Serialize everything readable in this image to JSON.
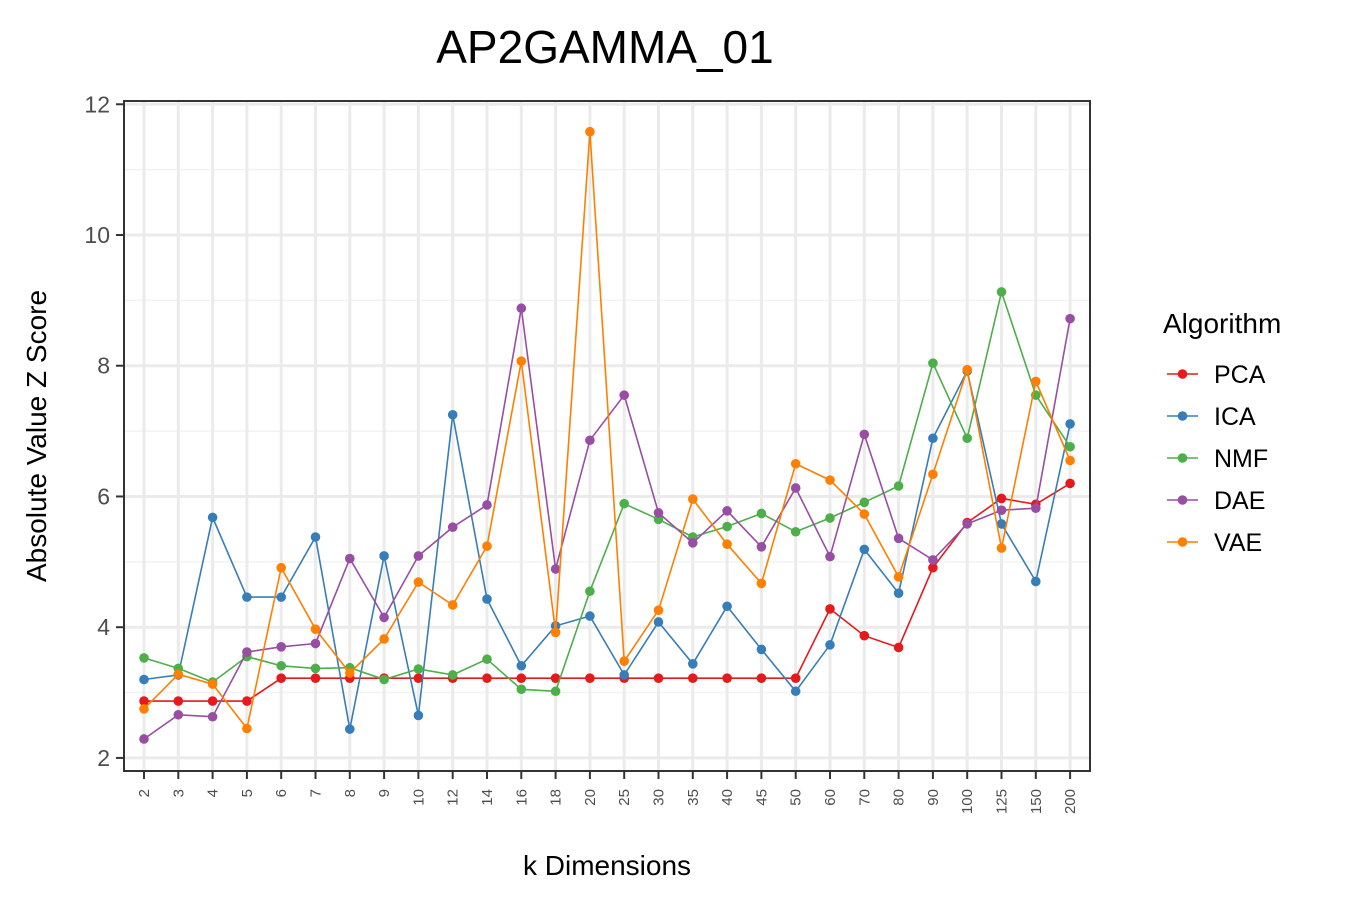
{
  "chart_data": {
    "type": "line",
    "title": "AP2GAMMA_01",
    "xlabel": "k Dimensions",
    "ylabel": "Absolute Value Z Score",
    "categories": [
      "2",
      "3",
      "4",
      "5",
      "6",
      "7",
      "8",
      "9",
      "10",
      "12",
      "14",
      "16",
      "18",
      "20",
      "25",
      "30",
      "35",
      "40",
      "45",
      "50",
      "60",
      "70",
      "80",
      "90",
      "100",
      "125",
      "150",
      "200"
    ],
    "ylim": [
      1.8,
      12.05
    ],
    "yticks": [
      2,
      4,
      6,
      8,
      10,
      12
    ],
    "grid": true,
    "legend": {
      "title": "Algorithm",
      "position": "right"
    },
    "series": [
      {
        "name": "PCA",
        "color": "#e41a1c",
        "values": [
          2.87,
          2.87,
          2.87,
          2.87,
          3.22,
          3.22,
          3.22,
          3.22,
          3.22,
          3.22,
          3.22,
          3.22,
          3.22,
          3.22,
          3.22,
          3.22,
          3.22,
          3.22,
          3.22,
          3.22,
          4.28,
          3.87,
          3.69,
          4.91,
          5.6,
          5.97,
          5.88,
          6.2
        ]
      },
      {
        "name": "ICA",
        "color": "#377eb8",
        "values": [
          3.2,
          3.27,
          5.68,
          4.46,
          4.46,
          5.38,
          2.44,
          5.09,
          2.65,
          7.25,
          4.43,
          3.41,
          4.02,
          4.17,
          3.27,
          4.08,
          3.44,
          4.32,
          3.66,
          3.02,
          3.73,
          5.19,
          4.52,
          6.89,
          7.92,
          5.58,
          4.7,
          7.11
        ]
      },
      {
        "name": "NMF",
        "color": "#4daf4a",
        "values": [
          3.53,
          3.37,
          3.16,
          3.55,
          3.41,
          3.37,
          3.38,
          3.2,
          3.36,
          3.27,
          3.51,
          3.05,
          3.02,
          4.55,
          5.89,
          5.65,
          5.38,
          5.54,
          5.74,
          5.46,
          5.67,
          5.91,
          6.16,
          8.04,
          6.89,
          9.13,
          7.55,
          6.76
        ]
      },
      {
        "name": "DAE",
        "color": "#984ea3",
        "values": [
          2.29,
          2.66,
          2.63,
          3.62,
          3.7,
          3.75,
          5.05,
          4.15,
          5.09,
          5.53,
          5.87,
          8.88,
          4.89,
          6.86,
          7.55,
          5.75,
          5.29,
          5.78,
          5.23,
          6.13,
          5.08,
          6.95,
          5.36,
          5.03,
          5.58,
          5.79,
          5.82,
          8.72
        ]
      },
      {
        "name": "VAE",
        "color": "#ff7f00",
        "values": [
          2.75,
          3.28,
          3.13,
          2.45,
          4.91,
          3.97,
          3.3,
          3.82,
          4.69,
          4.34,
          5.24,
          8.07,
          3.92,
          11.58,
          3.48,
          4.26,
          5.96,
          5.27,
          4.67,
          6.5,
          6.25,
          5.73,
          4.77,
          6.34,
          7.94,
          5.21,
          7.76,
          6.55
        ]
      }
    ]
  }
}
